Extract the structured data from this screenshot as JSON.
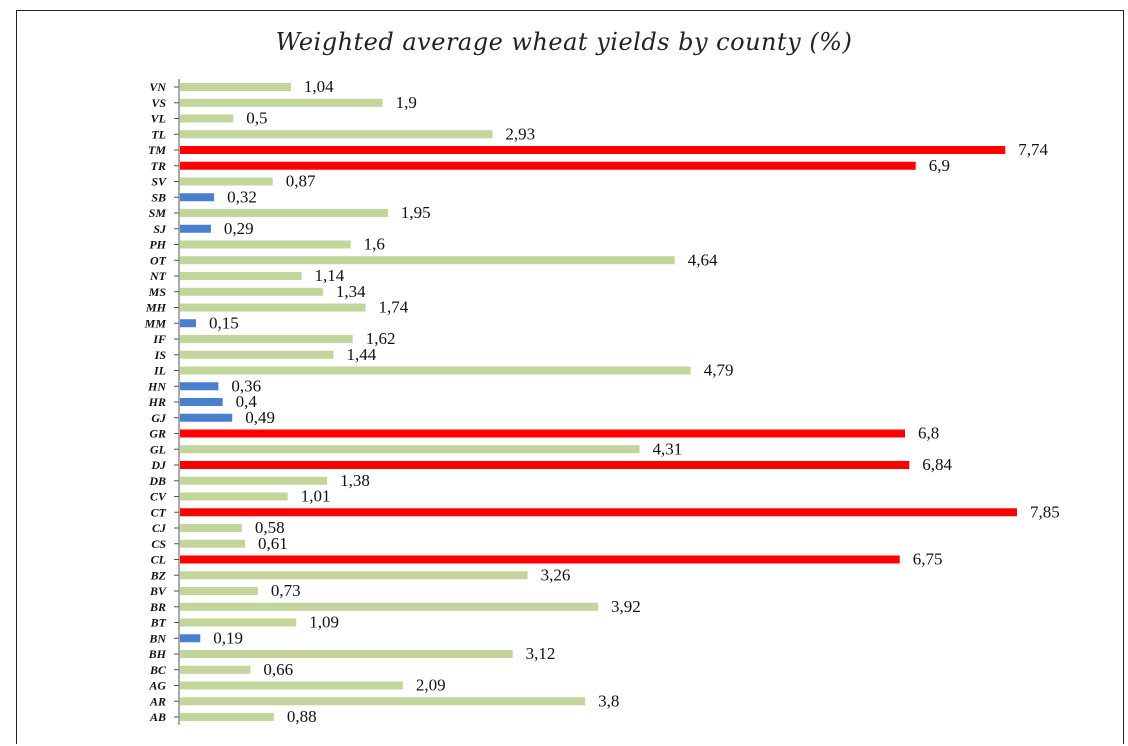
{
  "chart_data": {
    "type": "bar",
    "orientation": "horizontal",
    "title": "Weighted average wheat yields by county (%)",
    "xlabel": "",
    "ylabel": "",
    "grid": false,
    "legend": "none",
    "xlim": [
      0,
      8
    ],
    "colors": {
      "low": "#4a7fd0",
      "mid": "#c2d69b",
      "high": "#ff0000",
      "axis": "#555555"
    },
    "categories": [
      "VN",
      "VS",
      "VL",
      "TL",
      "TM",
      "TR",
      "SV",
      "SB",
      "SM",
      "SJ",
      "PH",
      "OT",
      "NT",
      "MS",
      "MH",
      "MM",
      "IF",
      "IS",
      "IL",
      "HN",
      "HR",
      "GJ",
      "GR",
      "GL",
      "DJ",
      "DB",
      "CV",
      "CT",
      "CJ",
      "CS",
      "CL",
      "BZ",
      "BV",
      "BR",
      "BT",
      "BN",
      "BH",
      "BC",
      "AG",
      "AR",
      "AB"
    ],
    "values": [
      1.04,
      1.9,
      0.5,
      2.93,
      7.74,
      6.9,
      0.87,
      0.32,
      1.95,
      0.29,
      1.6,
      4.64,
      1.14,
      1.34,
      1.74,
      0.15,
      1.62,
      1.44,
      4.79,
      0.36,
      0.4,
      0.49,
      6.8,
      4.31,
      6.84,
      1.38,
      1.01,
      7.85,
      0.58,
      0.61,
      6.75,
      3.26,
      0.73,
      3.92,
      1.09,
      0.19,
      3.12,
      0.66,
      2.09,
      3.8,
      0.88
    ],
    "value_labels": [
      "1,04",
      "1,9",
      "0,5",
      "2,93",
      "7,74",
      "6,9",
      "0,87",
      "0,32",
      "1,95",
      "0,29",
      "1,6",
      "4,64",
      "1,14",
      "1,34",
      "1,74",
      "0,15",
      "1,62",
      "1,44",
      "4,79",
      "0,36",
      "0,4",
      "0,49",
      "6,8",
      "4,31",
      "6,84",
      "1,38",
      "1,01",
      "7,85",
      "0,58",
      "0,61",
      "6,75",
      "3,26",
      "0,73",
      "3,92",
      "1,09",
      "0,19",
      "3,12",
      "0,66",
      "2,09",
      "3,8",
      "0,88"
    ],
    "color_groups": [
      "mid",
      "mid",
      "mid",
      "mid",
      "high",
      "high",
      "mid",
      "low",
      "mid",
      "low",
      "mid",
      "mid",
      "mid",
      "mid",
      "mid",
      "low",
      "mid",
      "mid",
      "mid",
      "low",
      "low",
      "low",
      "high",
      "mid",
      "high",
      "mid",
      "mid",
      "high",
      "mid",
      "mid",
      "high",
      "mid",
      "mid",
      "mid",
      "mid",
      "low",
      "mid",
      "mid",
      "mid",
      "mid",
      "mid"
    ]
  }
}
